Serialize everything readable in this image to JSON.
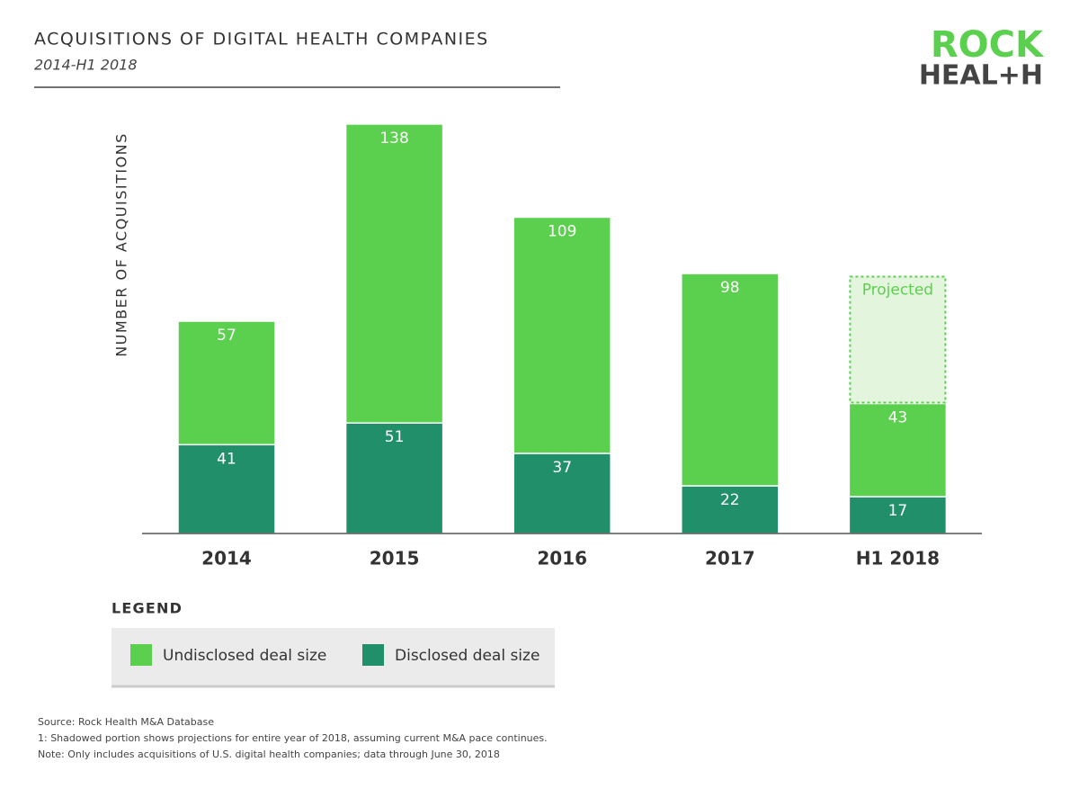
{
  "chart_data": {
    "type": "stacked-bar",
    "title": "ACQUISITIONS OF DIGITAL HEALTH COMPANIES",
    "subtitle": "2014-H1 2018",
    "y_label": "NUMBER OF ACQUISITIONS",
    "categories": [
      "2014",
      "2015",
      "2016",
      "2017",
      "H1 2018"
    ],
    "series": [
      {
        "name": "Disclosed deal size",
        "color": "#21906a",
        "values": [
          41,
          51,
          37,
          22,
          17
        ]
      },
      {
        "name": "Undisclosed deal size",
        "color": "#5bd04f",
        "values": [
          57,
          138,
          109,
          98,
          43
        ]
      },
      {
        "name": "Projected",
        "color": "#5bd04f",
        "style": "dashed",
        "values": [
          null,
          null,
          null,
          null,
          59
        ]
      }
    ],
    "ylim": [
      0,
      190
    ],
    "legend_title": "LEGEND",
    "footnotes": [
      "Source: Rock Health M&A Database",
      "1: Shadowed portion shows projections for entire year of 2018, assuming current M&A pace continues.",
      "Note: Only includes acquisitions of U.S. digital health companies; data through June 30, 2018"
    ]
  },
  "logo": {
    "line1": "ROCK",
    "line2": "HEAL+H"
  }
}
